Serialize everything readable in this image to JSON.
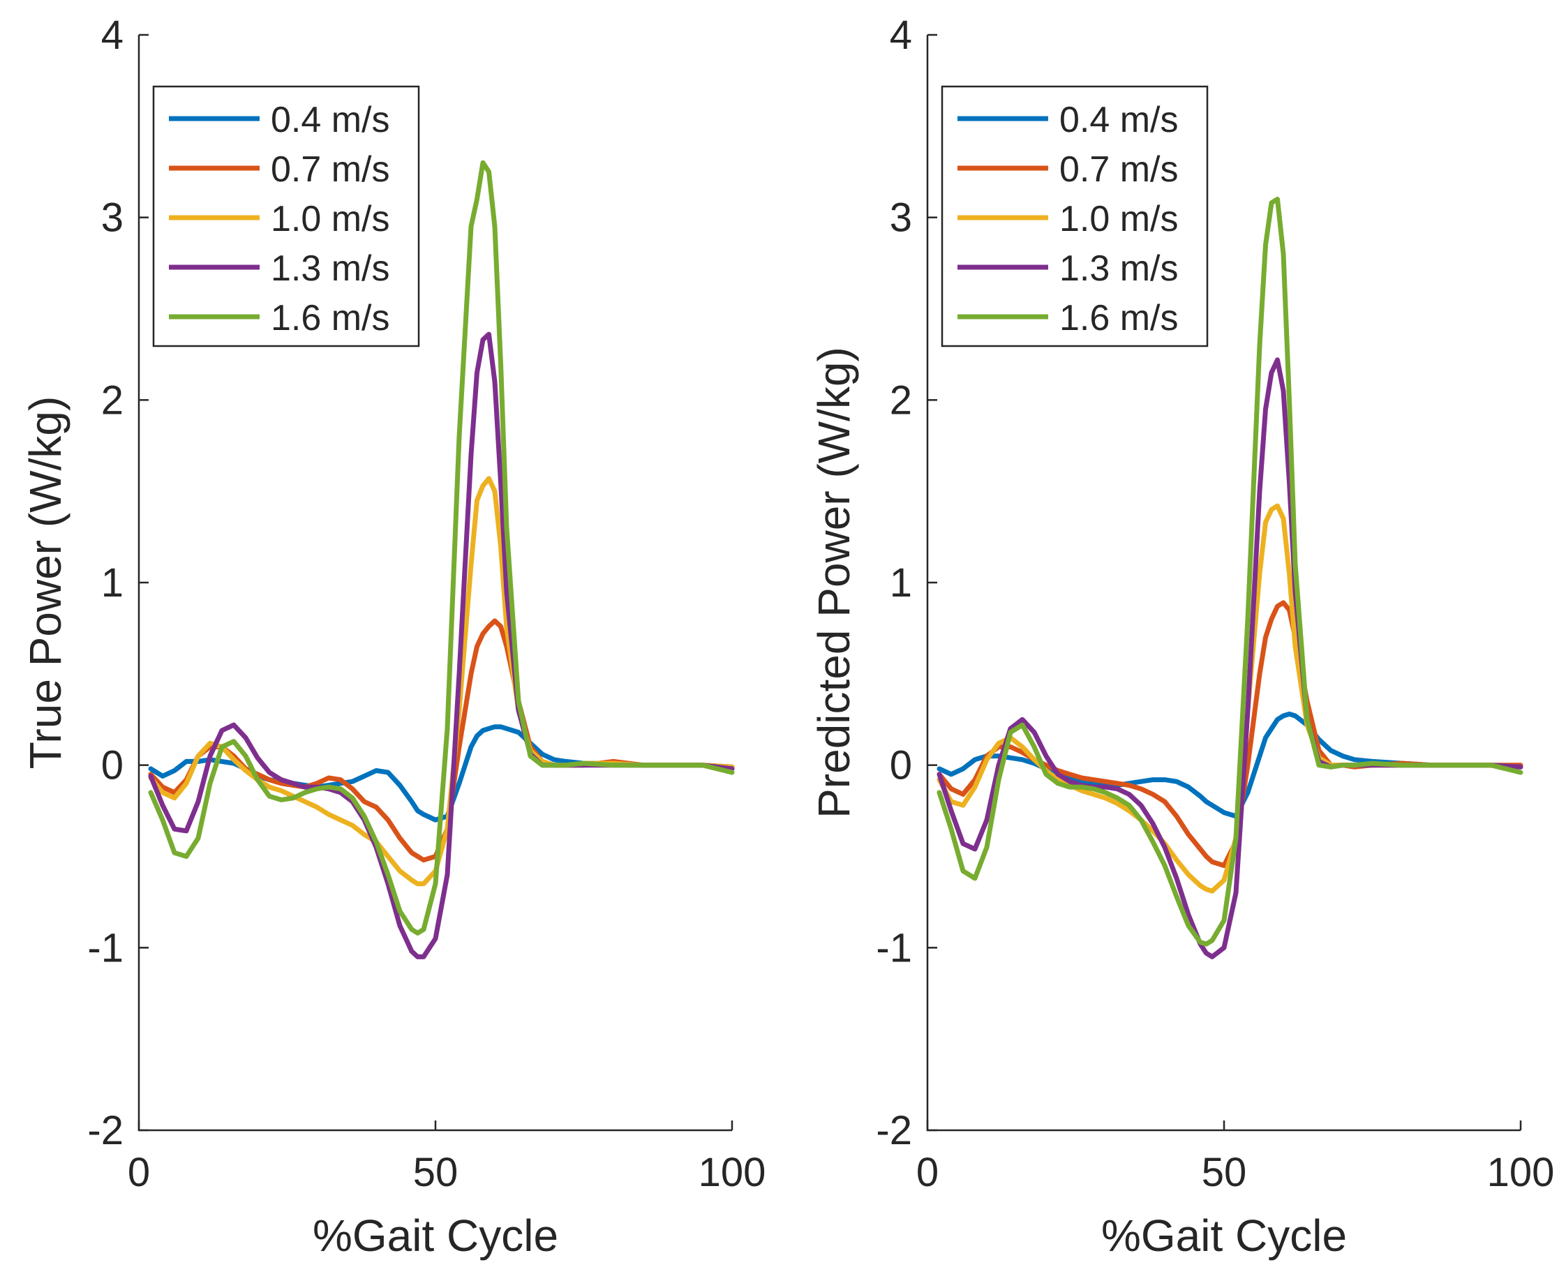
{
  "chart_data": [
    {
      "type": "line",
      "title": "",
      "xlabel": "%Gait Cycle",
      "ylabel": "True Power (W/kg)",
      "xlim": [
        0,
        100
      ],
      "ylim": [
        -2,
        4
      ],
      "xticks": [
        0,
        50,
        100
      ],
      "xtick_labels": [
        "0",
        "50",
        "100"
      ],
      "yticks": [
        -2,
        -1,
        0,
        1,
        2,
        3,
        4
      ],
      "ytick_labels": [
        "-2",
        "-1",
        "0",
        "1",
        "2",
        "3",
        "4"
      ],
      "grid": false,
      "legend_position": "top-left",
      "x": [
        2,
        4,
        6,
        8,
        10,
        12,
        14,
        16,
        18,
        20,
        22,
        24,
        26,
        28,
        30,
        32,
        34,
        36,
        38,
        40,
        42,
        44,
        46,
        47,
        48,
        50,
        52,
        54,
        56,
        57,
        58,
        59,
        60,
        61,
        62,
        64,
        66,
        68,
        70,
        72,
        75,
        80,
        85,
        90,
        95,
        100
      ],
      "series": [
        {
          "name": "0.4 m/s",
          "color": "#0072BD",
          "values": [
            -0.02,
            -0.06,
            -0.03,
            0.02,
            0.02,
            0.03,
            0.02,
            0.01,
            -0.02,
            -0.06,
            -0.08,
            -0.09,
            -0.1,
            -0.11,
            -0.12,
            -0.11,
            -0.1,
            -0.09,
            -0.06,
            -0.03,
            -0.04,
            -0.11,
            -0.2,
            -0.25,
            -0.27,
            -0.3,
            -0.28,
            -0.1,
            0.1,
            0.16,
            0.19,
            0.2,
            0.21,
            0.21,
            0.2,
            0.18,
            0.12,
            0.06,
            0.03,
            0.02,
            0.01,
            0.01,
            0.0,
            0.0,
            0.0,
            -0.01
          ]
        },
        {
          "name": "0.7 m/s",
          "color": "#D95319",
          "values": [
            -0.05,
            -0.12,
            -0.15,
            -0.08,
            0.05,
            0.1,
            0.1,
            0.05,
            -0.02,
            -0.05,
            -0.08,
            -0.1,
            -0.11,
            -0.12,
            -0.1,
            -0.07,
            -0.08,
            -0.13,
            -0.2,
            -0.23,
            -0.3,
            -0.4,
            -0.48,
            -0.5,
            -0.52,
            -0.5,
            -0.35,
            0.1,
            0.5,
            0.65,
            0.72,
            0.76,
            0.79,
            0.76,
            0.65,
            0.35,
            0.1,
            0.02,
            0.0,
            0.0,
            0.0,
            0.02,
            0.0,
            0.0,
            0.0,
            -0.01
          ]
        },
        {
          "name": "1.0 m/s",
          "color": "#EDB120",
          "values": [
            -0.07,
            -0.15,
            -0.18,
            -0.1,
            0.05,
            0.12,
            0.1,
            0.03,
            -0.03,
            -0.08,
            -0.12,
            -0.14,
            -0.17,
            -0.2,
            -0.23,
            -0.27,
            -0.3,
            -0.33,
            -0.38,
            -0.42,
            -0.5,
            -0.58,
            -0.63,
            -0.65,
            -0.65,
            -0.58,
            -0.35,
            0.3,
            1.1,
            1.45,
            1.53,
            1.57,
            1.5,
            1.2,
            0.75,
            0.3,
            0.08,
            0.02,
            0.0,
            0.0,
            0.01,
            0.01,
            0.0,
            0.0,
            0.0,
            -0.01
          ]
        },
        {
          "name": "1.3 m/s",
          "color": "#7E2F8E",
          "values": [
            -0.06,
            -0.22,
            -0.35,
            -0.36,
            -0.2,
            0.05,
            0.19,
            0.22,
            0.15,
            0.04,
            -0.04,
            -0.08,
            -0.1,
            -0.12,
            -0.12,
            -0.13,
            -0.15,
            -0.2,
            -0.3,
            -0.45,
            -0.65,
            -0.88,
            -1.02,
            -1.05,
            -1.05,
            -0.95,
            -0.6,
            0.5,
            1.7,
            2.15,
            2.33,
            2.36,
            2.1,
            1.55,
            0.95,
            0.3,
            0.06,
            0.0,
            0.0,
            0.0,
            0.0,
            0.0,
            0.0,
            0.0,
            0.0,
            -0.02
          ]
        },
        {
          "name": "1.6 m/s",
          "color": "#77AC30",
          "values": [
            -0.15,
            -0.3,
            -0.48,
            -0.5,
            -0.4,
            -0.1,
            0.1,
            0.13,
            0.05,
            -0.08,
            -0.17,
            -0.19,
            -0.18,
            -0.15,
            -0.13,
            -0.12,
            -0.13,
            -0.18,
            -0.28,
            -0.42,
            -0.6,
            -0.8,
            -0.9,
            -0.92,
            -0.9,
            -0.65,
            0.2,
            1.8,
            2.95,
            3.1,
            3.3,
            3.25,
            2.95,
            2.2,
            1.3,
            0.35,
            0.05,
            0.0,
            0.0,
            0.0,
            0.01,
            0.0,
            0.0,
            0.0,
            0.0,
            -0.04
          ]
        }
      ]
    },
    {
      "type": "line",
      "title": "",
      "xlabel": "%Gait Cycle",
      "ylabel": "Predicted Power (W/kg)",
      "xlim": [
        0,
        100
      ],
      "ylim": [
        -2,
        4
      ],
      "xticks": [
        0,
        50,
        100
      ],
      "xtick_labels": [
        "0",
        "50",
        "100"
      ],
      "yticks": [
        -2,
        -1,
        0,
        1,
        2,
        3,
        4
      ],
      "ytick_labels": [
        "-2",
        "-1",
        "0",
        "1",
        "2",
        "3",
        "4"
      ],
      "grid": false,
      "legend_position": "top-left",
      "x": [
        2,
        4,
        6,
        8,
        10,
        12,
        14,
        16,
        18,
        20,
        22,
        24,
        26,
        28,
        30,
        32,
        34,
        36,
        38,
        40,
        42,
        44,
        46,
        47,
        48,
        50,
        52,
        54,
        56,
        57,
        58,
        59,
        60,
        61,
        62,
        64,
        66,
        68,
        70,
        72,
        75,
        80,
        85,
        90,
        95,
        100
      ],
      "series": [
        {
          "name": "0.4 m/s",
          "color": "#0072BD",
          "values": [
            -0.02,
            -0.05,
            -0.02,
            0.03,
            0.05,
            0.05,
            0.04,
            0.03,
            0.01,
            -0.02,
            -0.05,
            -0.07,
            -0.09,
            -0.1,
            -0.11,
            -0.11,
            -0.1,
            -0.09,
            -0.08,
            -0.08,
            -0.09,
            -0.12,
            -0.17,
            -0.2,
            -0.22,
            -0.26,
            -0.28,
            -0.15,
            0.05,
            0.15,
            0.2,
            0.25,
            0.27,
            0.28,
            0.27,
            0.22,
            0.14,
            0.08,
            0.05,
            0.03,
            0.02,
            0.01,
            0.0,
            0.0,
            0.0,
            -0.01
          ]
        },
        {
          "name": "0.7 m/s",
          "color": "#D95319",
          "values": [
            -0.05,
            -0.13,
            -0.16,
            -0.08,
            0.05,
            0.1,
            0.1,
            0.07,
            0.03,
            0.0,
            -0.03,
            -0.05,
            -0.07,
            -0.08,
            -0.09,
            -0.1,
            -0.11,
            -0.13,
            -0.16,
            -0.2,
            -0.28,
            -0.38,
            -0.46,
            -0.5,
            -0.53,
            -0.55,
            -0.42,
            0.0,
            0.5,
            0.7,
            0.8,
            0.87,
            0.89,
            0.85,
            0.7,
            0.35,
            0.08,
            0.0,
            0.0,
            -0.01,
            0.0,
            0.01,
            0.0,
            0.0,
            0.0,
            0.0
          ]
        },
        {
          "name": "1.0 m/s",
          "color": "#EDB120",
          "values": [
            -0.08,
            -0.2,
            -0.22,
            -0.12,
            0.03,
            0.12,
            0.15,
            0.1,
            0.03,
            -0.03,
            -0.08,
            -0.11,
            -0.14,
            -0.16,
            -0.18,
            -0.21,
            -0.25,
            -0.3,
            -0.36,
            -0.43,
            -0.52,
            -0.6,
            -0.66,
            -0.68,
            -0.69,
            -0.63,
            -0.4,
            0.3,
            1.05,
            1.33,
            1.4,
            1.42,
            1.35,
            1.05,
            0.65,
            0.22,
            0.04,
            0.0,
            0.0,
            0.0,
            0.0,
            0.0,
            0.0,
            0.0,
            0.0,
            -0.01
          ]
        },
        {
          "name": "1.3 m/s",
          "color": "#7E2F8E",
          "values": [
            -0.05,
            -0.25,
            -0.43,
            -0.46,
            -0.3,
            0.0,
            0.2,
            0.25,
            0.18,
            0.05,
            -0.05,
            -0.09,
            -0.11,
            -0.12,
            -0.12,
            -0.13,
            -0.16,
            -0.22,
            -0.32,
            -0.45,
            -0.62,
            -0.82,
            -0.98,
            -1.03,
            -1.05,
            -1.0,
            -0.7,
            0.3,
            1.5,
            1.95,
            2.15,
            2.22,
            2.05,
            1.55,
            0.95,
            0.25,
            0.02,
            -0.01,
            0.0,
            0.0,
            0.0,
            0.0,
            0.0,
            0.0,
            0.0,
            -0.01
          ]
        },
        {
          "name": "1.6 m/s",
          "color": "#77AC30",
          "values": [
            -0.15,
            -0.35,
            -0.58,
            -0.62,
            -0.45,
            -0.08,
            0.18,
            0.22,
            0.1,
            -0.05,
            -0.1,
            -0.12,
            -0.12,
            -0.13,
            -0.15,
            -0.18,
            -0.22,
            -0.3,
            -0.42,
            -0.55,
            -0.72,
            -0.88,
            -0.97,
            -0.98,
            -0.96,
            -0.85,
            -0.4,
            0.8,
            2.3,
            2.85,
            3.08,
            3.1,
            2.8,
            2.0,
            1.1,
            0.25,
            0.0,
            -0.01,
            0.0,
            0.0,
            0.01,
            0.0,
            0.0,
            0.0,
            0.0,
            -0.04
          ]
        }
      ]
    }
  ]
}
